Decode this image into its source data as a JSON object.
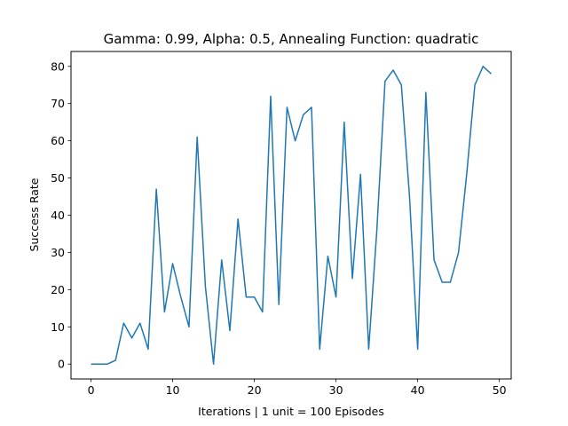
{
  "chart_data": {
    "type": "line",
    "title": "Gamma: 0.99, Alpha: 0.5, Annealing Function: quadratic",
    "xlabel": "Iterations | 1 unit = 100 Episodes",
    "ylabel": "Success Rate",
    "xlim": [
      -2.45,
      51.45
    ],
    "ylim": [
      -4,
      84
    ],
    "xticks": [
      0,
      10,
      20,
      30,
      40,
      50
    ],
    "yticks": [
      0,
      10,
      20,
      30,
      40,
      50,
      60,
      70,
      80
    ],
    "grid": false,
    "series": [
      {
        "color": "#1f77b4",
        "x": [
          0,
          1,
          2,
          3,
          4,
          5,
          6,
          7,
          8,
          9,
          10,
          11,
          12,
          13,
          14,
          15,
          16,
          17,
          18,
          19,
          20,
          21,
          22,
          23,
          24,
          25,
          26,
          27,
          28,
          29,
          30,
          31,
          32,
          33,
          34,
          35,
          36,
          37,
          38,
          39,
          40,
          41,
          42,
          43,
          44,
          45,
          46,
          47,
          48,
          49
        ],
        "values": [
          0,
          0,
          0,
          1,
          11,
          7,
          11,
          4,
          47,
          14,
          27,
          18,
          10,
          61,
          21,
          0,
          28,
          9,
          39,
          18,
          18,
          14,
          72,
          16,
          69,
          60,
          67,
          69,
          4,
          29,
          18,
          65,
          23,
          51,
          4,
          36,
          76,
          79,
          75,
          45,
          4,
          73,
          28,
          22,
          22,
          30,
          51,
          75,
          80,
          78
        ]
      }
    ]
  }
}
